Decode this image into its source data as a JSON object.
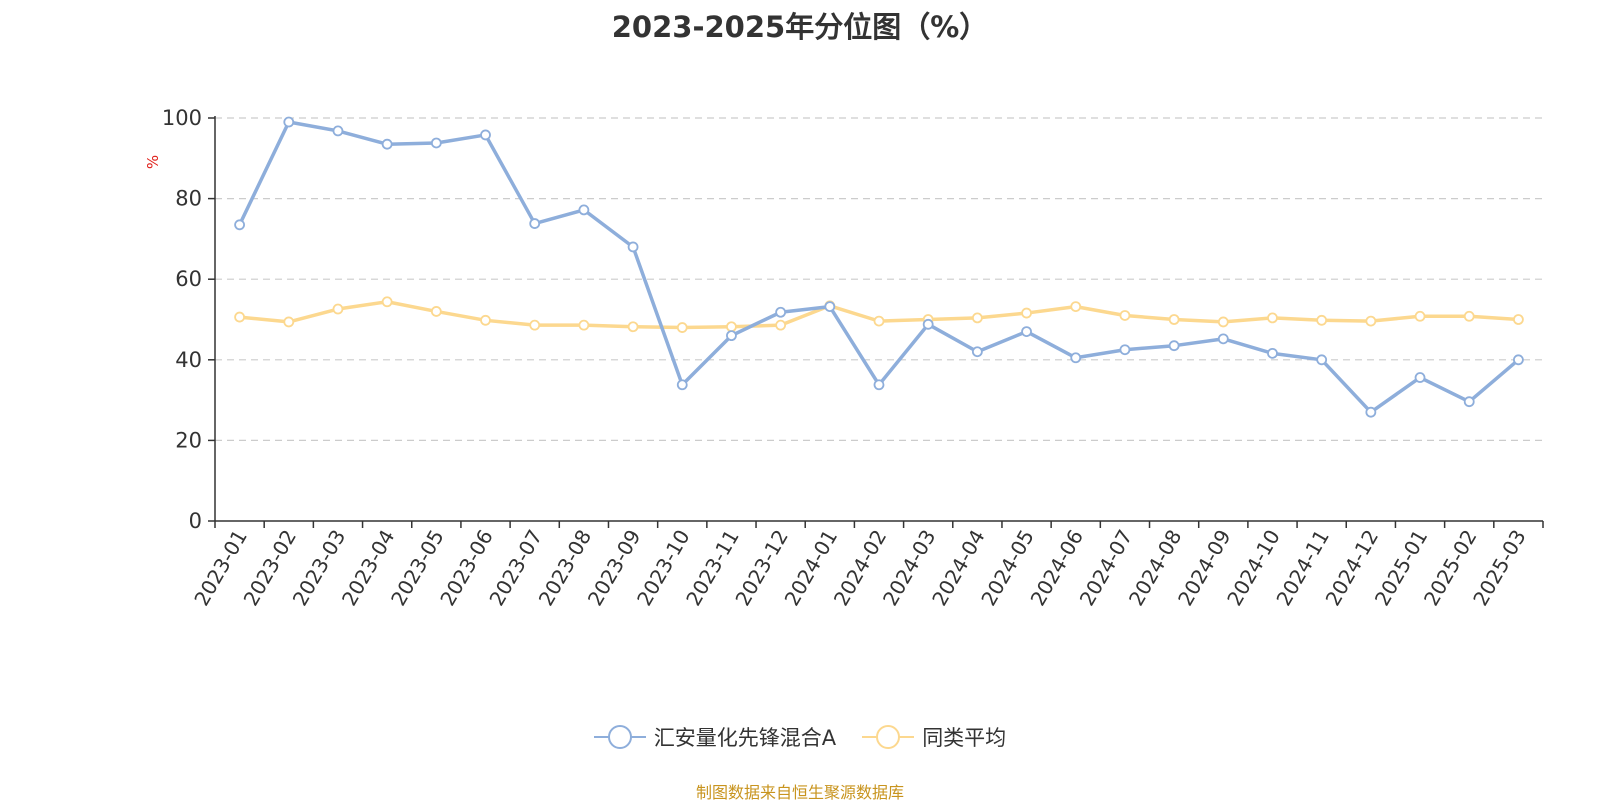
{
  "chart_data": {
    "type": "line",
    "title": "2023-2025年分位图（%）",
    "ylabel": "%",
    "xlabel": "",
    "ylim": [
      0,
      100
    ],
    "yticks": [
      0,
      20,
      40,
      60,
      80,
      100
    ],
    "grid": true,
    "legend_position": "bottom",
    "categories": [
      "2023-01",
      "2023-02",
      "2023-03",
      "2023-04",
      "2023-05",
      "2023-06",
      "2023-07",
      "2023-08",
      "2023-09",
      "2023-10",
      "2023-11",
      "2023-12",
      "2024-01",
      "2024-02",
      "2024-03",
      "2024-04",
      "2024-05",
      "2024-06",
      "2024-07",
      "2024-08",
      "2024-09",
      "2024-10",
      "2024-11",
      "2024-12",
      "2025-01",
      "2025-02",
      "2025-03"
    ],
    "series": [
      {
        "name": "汇安量化先锋混合A",
        "color": "#8eaedb",
        "values": [
          73.5,
          99,
          96.8,
          93.5,
          93.8,
          95.8,
          73.8,
          77.2,
          68,
          33.8,
          46,
          51.8,
          53.2,
          33.8,
          48.8,
          42,
          47,
          40.5,
          42.5,
          43.5,
          45.2,
          41.6,
          40,
          27,
          35.6,
          29.6,
          40
        ]
      },
      {
        "name": "同类平均",
        "color": "#fcd88f",
        "values": [
          50.6,
          49.4,
          52.6,
          54.4,
          52,
          49.8,
          48.6,
          48.6,
          48.2,
          48,
          48.2,
          48.6,
          53.4,
          49.6,
          50,
          50.4,
          51.6,
          53.2,
          51,
          50,
          49.4,
          50.4,
          49.8,
          49.6,
          50.8,
          50.8,
          50
        ]
      }
    ]
  },
  "axis_label_color": "#e0201a",
  "source_note": "制图数据来自恒生聚源数据库"
}
